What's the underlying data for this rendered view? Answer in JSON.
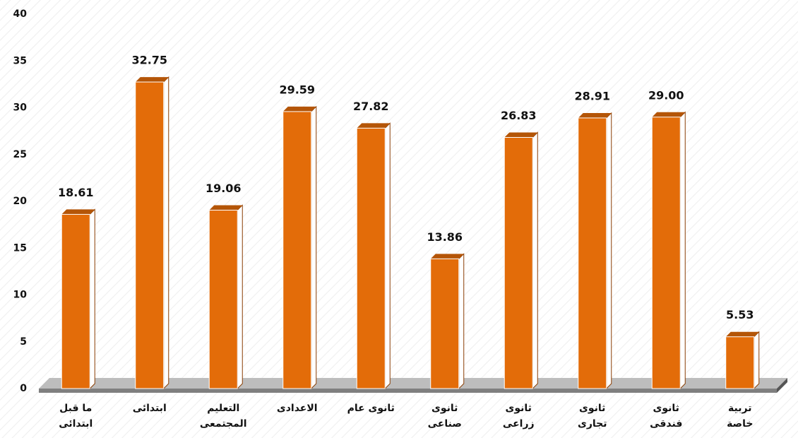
{
  "chart_data": {
    "type": "bar",
    "categories": [
      "ما قبل\nابتدائى",
      "ابتدائى",
      "التعليم\nالمجتمعى",
      "الاعدادى",
      "ثانوى عام",
      "ثانوى\nصناعى",
      "ثانوى\nزراعى",
      "ثانوى\nتجارى",
      "ثانوى\nفندقى",
      "تربية\nخاصة"
    ],
    "values": [
      18.61,
      32.75,
      19.06,
      29.59,
      27.82,
      13.86,
      26.83,
      28.91,
      29,
      5.53
    ],
    "value_labels": [
      "18.61",
      "32.75",
      "19.06",
      "29.59",
      "27.82",
      "13.86",
      "26.83",
      "28.91",
      "29.00",
      "5.53"
    ],
    "color": "#e36c09",
    "ylim": [
      0,
      40
    ],
    "yticks": [
      0,
      5,
      10,
      15,
      20,
      25,
      30,
      35,
      40
    ],
    "grid": false
  }
}
